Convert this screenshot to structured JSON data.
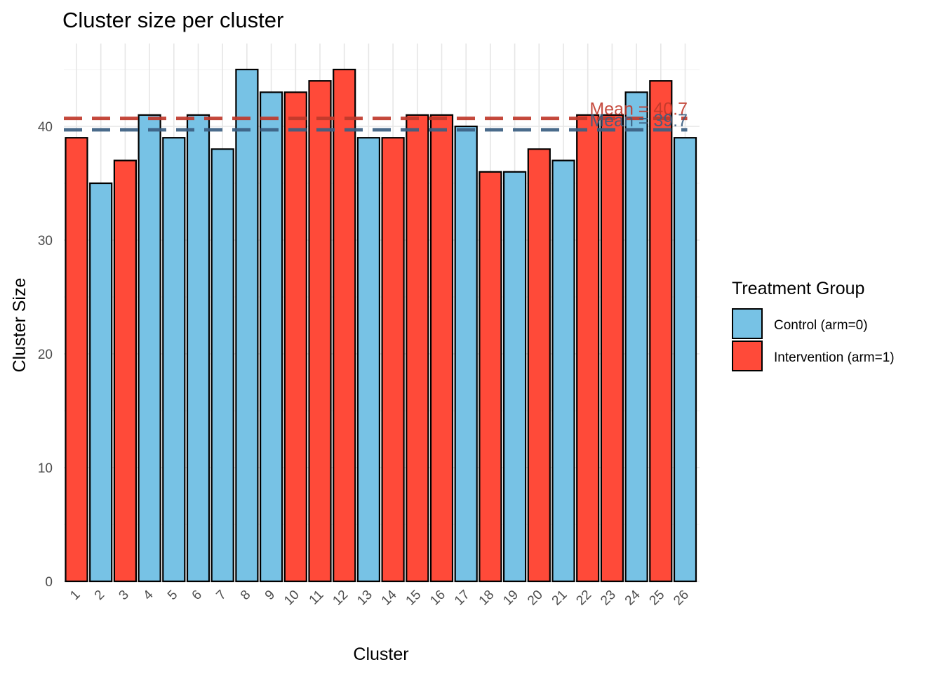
{
  "chart_data": {
    "type": "bar",
    "title": "Cluster size per cluster",
    "xlabel": "Cluster",
    "ylabel": "Cluster Size",
    "categories": [
      "1",
      "2",
      "3",
      "4",
      "5",
      "6",
      "7",
      "8",
      "9",
      "10",
      "11",
      "12",
      "13",
      "14",
      "15",
      "16",
      "17",
      "18",
      "19",
      "20",
      "21",
      "22",
      "23",
      "24",
      "25",
      "26"
    ],
    "values": [
      39,
      35,
      37,
      41,
      39,
      41,
      38,
      45,
      43,
      43,
      44,
      45,
      39,
      39,
      41,
      41,
      40,
      36,
      36,
      38,
      37,
      41,
      41,
      43,
      44,
      39
    ],
    "groups": [
      1,
      0,
      1,
      0,
      0,
      0,
      0,
      0,
      0,
      1,
      1,
      1,
      0,
      1,
      1,
      1,
      0,
      1,
      0,
      1,
      0,
      1,
      1,
      0,
      1,
      0
    ],
    "ylim": [
      0,
      47
    ],
    "yticks": [
      0,
      10,
      20,
      30,
      40
    ],
    "grid": true,
    "legend": {
      "title": "Treatment Group",
      "position": "right",
      "entries": [
        {
          "label": "Control (arm=0)",
          "color": "#77c2e5"
        },
        {
          "label": "Intervention (arm=1)",
          "color": "#ff4a39"
        }
      ]
    },
    "reference_lines": [
      {
        "value": 40.7,
        "label": "Mean = 40.7",
        "color": "#c0392b",
        "style": "dashed"
      },
      {
        "value": 39.7,
        "label": "Mean = 39.7",
        "color": "#3b5f82",
        "style": "dashed"
      }
    ]
  }
}
